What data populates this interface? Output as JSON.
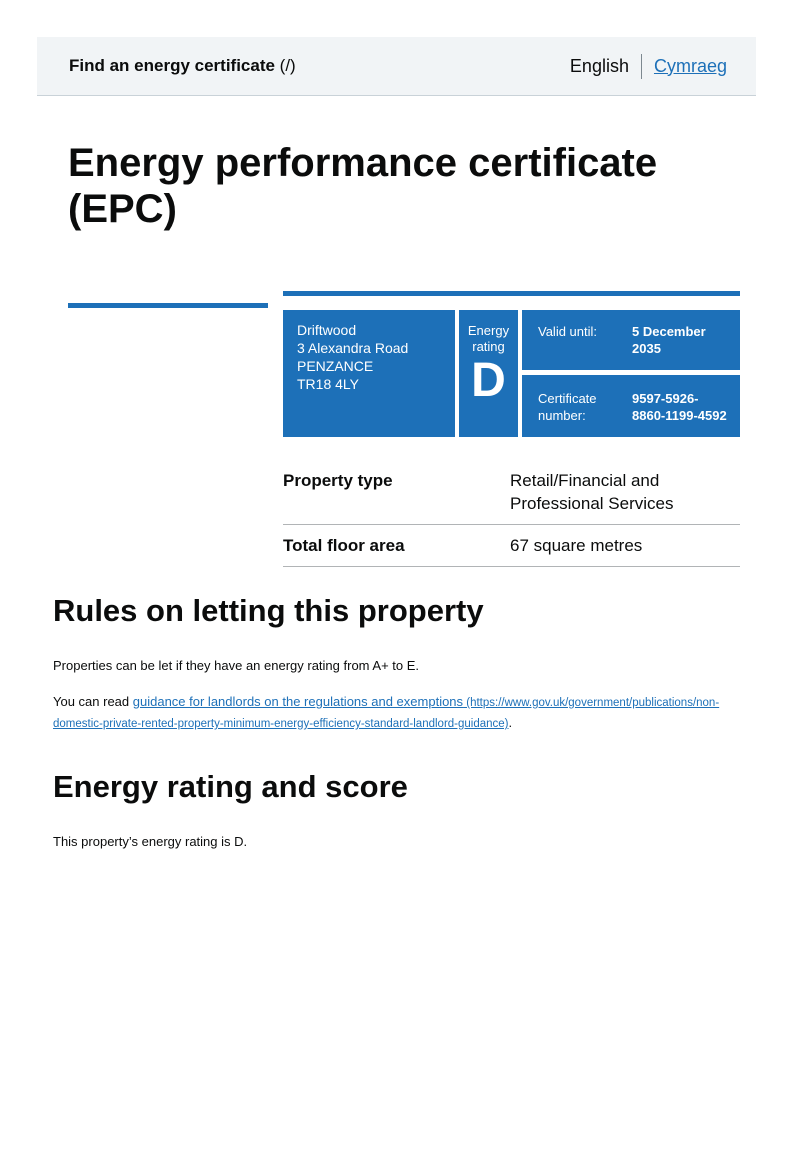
{
  "header": {
    "service_name": "Find an energy certificate",
    "service_suffix": " (/)",
    "language_current": "English",
    "language_link": "Cymraeg"
  },
  "title": "Energy performance certificate (EPC)",
  "summary": {
    "address_lines": [
      "Driftwood",
      "3 Alexandra Road",
      "PENZANCE",
      "TR18 4LY"
    ],
    "energy_rating_label_line1": "Energy",
    "energy_rating_label_line2": "rating",
    "energy_rating": "D",
    "valid_until_label": "Valid until:",
    "valid_until_value": "5 December 2035",
    "certificate_number_label": "Certificate number:",
    "certificate_number_value": "9597-5926-8860-1199-4592"
  },
  "property_table": {
    "rows": [
      {
        "label": "Property type",
        "value": "Retail/Financial and Professional Services"
      },
      {
        "label": "Total floor area",
        "value": "67 square metres"
      }
    ]
  },
  "rules_section": {
    "heading": "Rules on letting this property",
    "paragraph1": "Properties can be let if they have an energy rating from A+ to E.",
    "paragraph2_prefix": "You can read ",
    "link_text": "guidance for landlords on the regulations and exemptions",
    "link_url": " (https://www.gov.uk/government/publications/non-domestic-private-rented-property-minimum-energy-efficiency-standard-landlord-guidance)",
    "paragraph2_suffix": "."
  },
  "energy_section": {
    "heading": "Energy rating and score",
    "paragraph": "This property’s energy rating is D."
  },
  "colors": {
    "brand_blue": "#1d70b8",
    "text": "#0b0c0c",
    "header_background": "#f1f4f6",
    "table_border": "#b1b4b6"
  }
}
